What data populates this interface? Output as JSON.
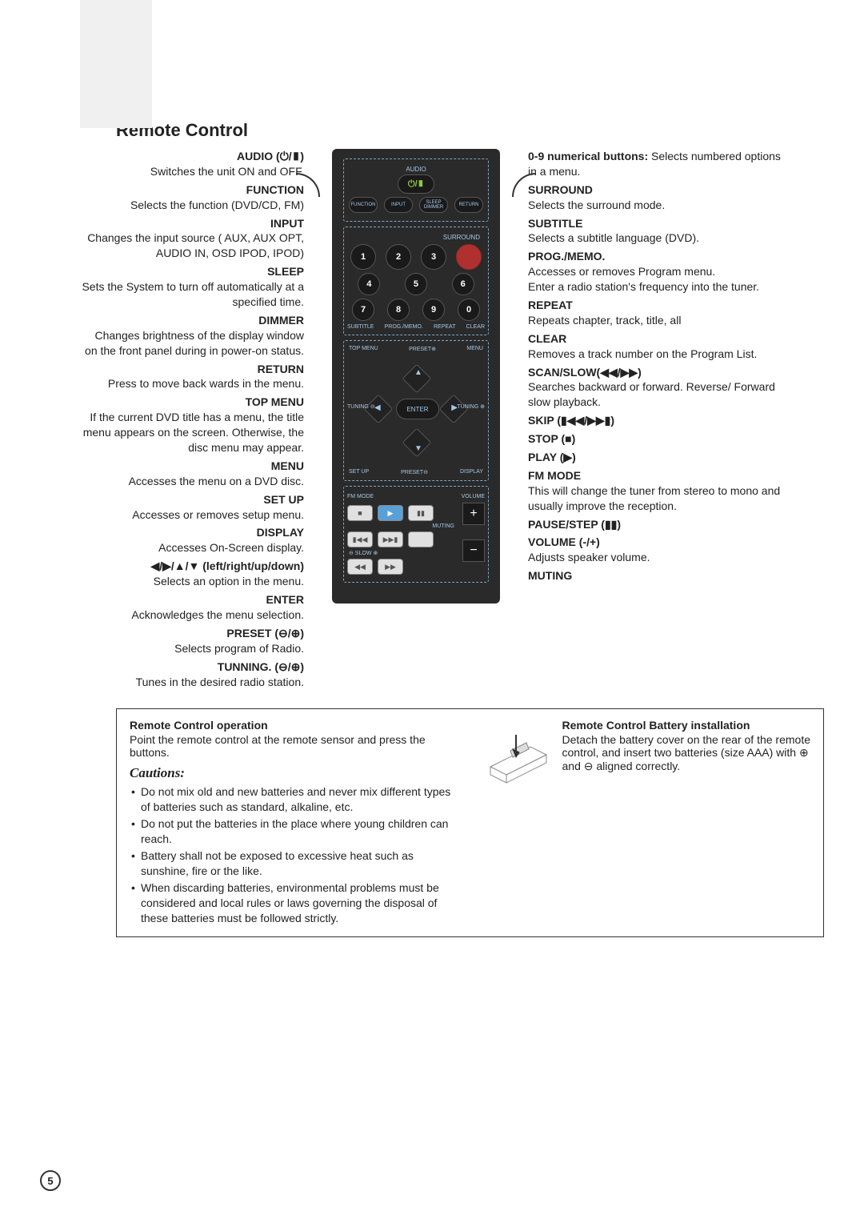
{
  "page_title": "Remote Control",
  "page_number": "5",
  "left_items": [
    {
      "label": "AUDIO (⏻/▮)",
      "desc": "Switches the unit ON and OFF."
    },
    {
      "label": "FUNCTION",
      "desc": "Selects the function (DVD/CD, FM)"
    },
    {
      "label": "INPUT",
      "desc": "Changes the input source ( AUX, AUX OPT, AUDIO IN, OSD IPOD, IPOD)"
    },
    {
      "label": "SLEEP",
      "desc": "Sets the System to turn off automatically at a specified time."
    },
    {
      "label": "DIMMER",
      "desc": "Changes brightness of the display window on the front panel during in power-on status."
    },
    {
      "label": "RETURN",
      "desc": "Press to move back wards in the menu."
    },
    {
      "label": "TOP MENU",
      "desc": "If the current DVD title has a menu, the title menu appears on the screen. Otherwise, the disc menu may appear."
    },
    {
      "label": "MENU",
      "desc": "Accesses the menu on a DVD disc."
    },
    {
      "label": "SET UP",
      "desc": "Accesses or removes setup menu."
    },
    {
      "label": "DISPLAY",
      "desc": "Accesses On-Screen display."
    },
    {
      "label": "◀/▶/▲/▼ (left/right/up/down)",
      "desc": "Selects an option in the menu."
    },
    {
      "label": "ENTER",
      "desc": "Acknowledges the menu selection."
    },
    {
      "label": "PRESET (⊖/⊕)",
      "desc": "Selects program of Radio."
    },
    {
      "label": "TUNNING. (⊖/⊕)",
      "desc": "Tunes in the desired radio station."
    }
  ],
  "right_items": [
    {
      "label": "0-9 numerical buttons: ",
      "desc": "Selects numbered options in a menu.",
      "inline": true
    },
    {
      "label": "SURROUND",
      "desc": "Selects the surround mode."
    },
    {
      "label": "SUBTITLE",
      "desc": "Selects a subtitle language (DVD)."
    },
    {
      "label": "PROG./MEMO.",
      "desc": "Accesses or removes Program menu.\nEnter a radio station's frequency into the tuner."
    },
    {
      "label": "REPEAT",
      "desc": "Repeats chapter, track, title, all"
    },
    {
      "label": "CLEAR",
      "desc": "Removes a track number on the Program List."
    },
    {
      "label": "SCAN/SLOW(◀◀/▶▶)",
      "desc": "Searches backward or forward. Reverse/ Forward slow playback."
    },
    {
      "label": "SKIP (▮◀◀/▶▶▮)",
      "desc": ""
    },
    {
      "label": "STOP (■)",
      "desc": ""
    },
    {
      "label": "PLAY (▶)",
      "desc": ""
    },
    {
      "label": "FM MODE",
      "desc": "This will change the tuner from stereo to mono and usually improve the reception."
    },
    {
      "label": "PAUSE/STEP (▮▮)",
      "desc": ""
    },
    {
      "label": "VOLUME (-/+)",
      "desc": "Adjusts speaker volume."
    },
    {
      "label": "MUTING",
      "desc": ""
    }
  ],
  "remote": {
    "audio_label": "AUDIO",
    "power_symbol": "⏻/▮",
    "top_row": [
      "FUNCTION",
      "INPUT",
      "SLEEP DIMMER",
      "RETURN"
    ],
    "surround_label": "SURROUND",
    "num_rows": [
      [
        "1",
        "2",
        "3"
      ],
      [
        "4",
        "5",
        "6"
      ],
      [
        "7",
        "8",
        "9",
        "0"
      ]
    ],
    "num_bottom_labels": [
      "SUBTITLE",
      "PROG./MEMO.",
      "REPEAT",
      "CLEAR"
    ],
    "nav_corners_top": [
      "TOP MENU",
      "PRESET⊕",
      "MENU"
    ],
    "nav_side_left": "TUNING ⊖",
    "nav_side_right": "TUNING ⊕",
    "nav_enter": "ENTER",
    "nav_corners_bot": [
      "SET UP",
      "PRESET⊖",
      "DISPLAY"
    ],
    "fm_mode": "FM MODE",
    "volume_label": "VOLUME",
    "muting_label": "MUTING",
    "slow_label": "⊖ SLOW ⊕"
  },
  "bottom": {
    "op_head": "Remote Control operation",
    "op_text": "Point the remote control at the remote sensor and press the buttons.",
    "cautions_head": "Cautions:",
    "cautions": [
      "Do not mix old and new batteries and never mix different types of batteries such as standard, alkaline, etc.",
      "Do not put the batteries in the place where young children can reach.",
      "Battery shall not be exposed to excessive heat such as sunshine, fire or the like.",
      "When discarding batteries, environmental problems must be considered and local rules or laws governing the disposal of these batteries must be followed strictly."
    ],
    "batt_head": "Remote Control Battery installation",
    "batt_text": "Detach the battery cover on the rear of the remote control, and insert two batteries (size AAA) with ⊕ and ⊖ aligned correctly."
  },
  "colors": {
    "remote_body": "#2a2a2a",
    "remote_text": "#a5c8e8",
    "power_green": "#8ec63f",
    "red_button": "#b03030"
  }
}
